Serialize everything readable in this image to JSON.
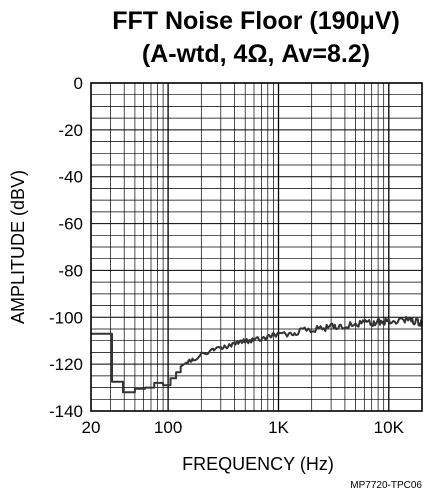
{
  "chart_data": {
    "type": "line",
    "title_line1": "FFT Noise Floor (190μV)",
    "title_line2": "(A-wtd, 4Ω, Av=8.2)",
    "xlabel": "FREQUENCY (Hz)",
    "ylabel": "AMPLITUDE (dBV)",
    "x_scale": "log",
    "xlim": [
      20,
      20000
    ],
    "ylim": [
      -140,
      0
    ],
    "x_ticks": [
      {
        "value": 20,
        "label": "20"
      },
      {
        "value": 100,
        "label": "100"
      },
      {
        "value": 1000,
        "label": "1K"
      },
      {
        "value": 10000,
        "label": "10K"
      }
    ],
    "y_ticks": [
      {
        "value": 0,
        "label": "0"
      },
      {
        "value": -20,
        "label": "-20"
      },
      {
        "value": -40,
        "label": "-40"
      },
      {
        "value": -60,
        "label": "-60"
      },
      {
        "value": -80,
        "label": "-80"
      },
      {
        "value": -100,
        "label": "-100"
      },
      {
        "value": -120,
        "label": "-120"
      },
      {
        "value": -140,
        "label": "-140"
      }
    ],
    "grid": true,
    "series": [
      {
        "color": "#333333",
        "x": [
          20,
          31,
          31,
          39,
          39,
          50,
          50,
          62,
          62,
          75,
          75,
          90,
          90,
          105,
          105,
          118,
          118,
          130,
          130,
          150,
          170,
          200,
          230,
          260,
          300,
          350,
          400,
          450,
          500,
          550,
          600,
          700,
          800,
          900,
          1000,
          1200,
          1400,
          1600,
          1800,
          2000,
          2500,
          3000,
          3500,
          4000,
          5000,
          6000,
          7000,
          8000,
          9000,
          10000,
          12000,
          14000,
          16000,
          18000,
          20000
        ],
        "y": [
          -107,
          -107,
          -127.5,
          -127.5,
          -132,
          -132,
          -130.5,
          -130.5,
          -130,
          -130,
          -128,
          -128,
          -129,
          -129,
          -126,
          -126,
          -123.5,
          -123.5,
          -121,
          -119,
          -118,
          -116,
          -115,
          -114,
          -113,
          -112.5,
          -111,
          -110.5,
          -110,
          -110.5,
          -109,
          -109.5,
          -108.5,
          -107.5,
          -107.5,
          -107,
          -106.5,
          -106,
          -105.5,
          -105,
          -105,
          -104,
          -104,
          -103.5,
          -103,
          -102.5,
          -102.5,
          -102,
          -102,
          -101.5,
          -101.5,
          -101,
          -101.5,
          -102,
          -102.5
        ]
      }
    ],
    "figure_code": "MP7720-TPC06"
  }
}
